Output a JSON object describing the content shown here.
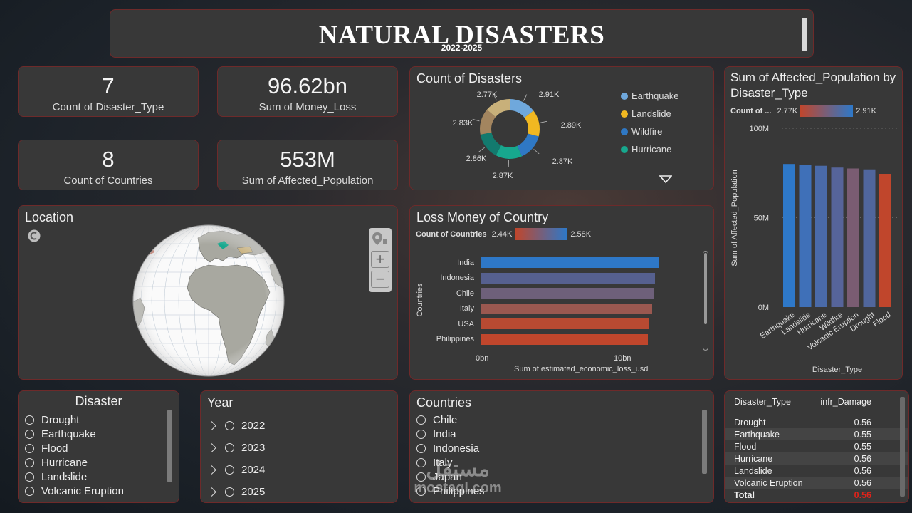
{
  "header": {
    "title": "NATURAL DISASTERS",
    "subtitle": "2022-2025"
  },
  "kpis": [
    {
      "value": "7",
      "label": "Count of Disaster_Type"
    },
    {
      "value": "96.62bn",
      "label": "Sum of Money_Loss"
    },
    {
      "value": "8",
      "label": "Count of Countries"
    },
    {
      "value": "553M",
      "label": "Sum of Affected_Population"
    }
  ],
  "donut": {
    "title": "Count of Disasters",
    "labels": [
      "2.91K",
      "2.89K",
      "2.87K",
      "2.87K",
      "2.86K",
      "2.83K",
      "2.77K"
    ],
    "legend": [
      "Earthquake",
      "Landslide",
      "Wildfire",
      "Hurricane"
    ],
    "colors": [
      "#6fa8dc",
      "#f1b821",
      "#2f78c4",
      "#17a88e",
      "#137a6e",
      "#a3855f",
      "#c8b07a"
    ]
  },
  "location": {
    "title": "Location",
    "zoom_in": "+",
    "zoom_out": "−"
  },
  "loss": {
    "title": "Loss Money of Country",
    "gradient_label": "Count of Countries",
    "gradient_min": "2.44K",
    "gradient_max": "2.58K",
    "ylabel": "Countries",
    "xlabel": "Sum of estimated_economic_loss_usd",
    "xticks": [
      "0bn",
      "10bn"
    ]
  },
  "affected": {
    "title": "Sum of Affected_Population by Disaster_Type",
    "gradient_label": "Count of ...",
    "gradient_min": "2.77K",
    "gradient_max": "2.91K",
    "ylabel": "Sum of Affected_Population",
    "xlabel": "Disaster_Type",
    "yticks": [
      "100M",
      "50M",
      "0M"
    ]
  },
  "slicers": {
    "disaster": {
      "title": "Disaster",
      "items": [
        "Drought",
        "Earthquake",
        "Flood",
        "Hurricane",
        "Landslide",
        "Volcanic Eruption"
      ]
    },
    "year": {
      "title": "Year",
      "items": [
        "2022",
        "2023",
        "2024",
        "2025"
      ]
    },
    "countries": {
      "title": "Countries",
      "items": [
        "Chile",
        "India",
        "Indonesia",
        "Italy",
        "Japan",
        "Philippines"
      ]
    }
  },
  "table": {
    "headers": [
      "Disaster_Type",
      "infr_Damage"
    ],
    "rows": [
      [
        "Drought",
        "0.56"
      ],
      [
        "Earthquake",
        "0.55"
      ],
      [
        "Flood",
        "0.55"
      ],
      [
        "Hurricane",
        "0.56"
      ],
      [
        "Landslide",
        "0.56"
      ],
      [
        "Volcanic Eruption",
        "0.56"
      ]
    ],
    "total": [
      "Total",
      "0.56"
    ]
  },
  "watermark": {
    "arabic": "مستقل",
    "latin": "mostaql.com"
  },
  "chart_data": [
    {
      "type": "pie",
      "title": "Count of Disasters",
      "values": [
        2910,
        2890,
        2870,
        2870,
        2860,
        2830,
        2770
      ],
      "legend": [
        "Earthquake",
        "Landslide",
        "Wildfire",
        "Hurricane"
      ]
    },
    {
      "type": "bar",
      "title": "Loss Money of Country",
      "orientation": "horizontal",
      "categories": [
        "India",
        "Indonesia",
        "Chile",
        "Italy",
        "USA",
        "Philippines"
      ],
      "values": [
        12.2,
        11.9,
        11.8,
        11.7,
        11.5,
        11.4
      ],
      "xlabel": "Sum of estimated_economic_loss_usd",
      "ylabel": "Countries",
      "xlim": [
        0,
        13
      ],
      "colors": [
        "#2e78c8",
        "#56608f",
        "#6e607a",
        "#9a5850",
        "#b84a32",
        "#c0462c"
      ]
    },
    {
      "type": "bar",
      "title": "Sum of Affected_Population by Disaster_Type",
      "categories": [
        "Earthquake",
        "Landslide",
        "Hurricane",
        "Wildfire",
        "Volcanic Eruption",
        "Drought",
        "Flood"
      ],
      "values": [
        80,
        79.5,
        79,
        78,
        77.5,
        77,
        74.5
      ],
      "xlabel": "Disaster_Type",
      "ylabel": "Sum of Affected_Population",
      "ylim": [
        0,
        100
      ],
      "colors": [
        "#2e78c8",
        "#3f70b8",
        "#4a6aa8",
        "#56649a",
        "#7a5c72",
        "#50669c",
        "#c0462c"
      ]
    }
  ]
}
